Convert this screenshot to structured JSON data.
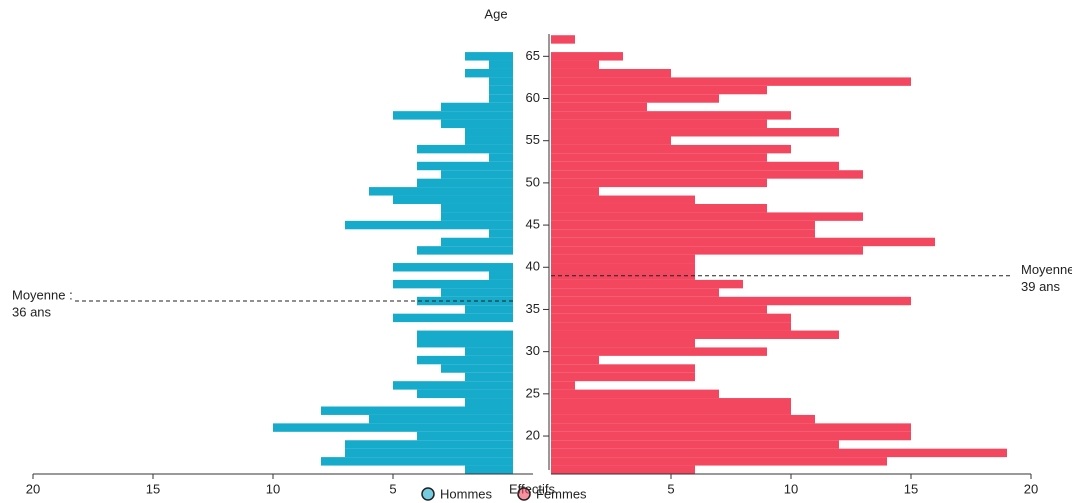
{
  "chart_data": {
    "type": "pyramid",
    "title": "Age",
    "x_label": "Effectifs",
    "y": [
      16,
      17,
      18,
      19,
      20,
      21,
      22,
      23,
      24,
      25,
      26,
      27,
      28,
      29,
      30,
      31,
      32,
      33,
      34,
      35,
      36,
      37,
      38,
      39,
      40,
      41,
      42,
      43,
      44,
      45,
      46,
      47,
      48,
      49,
      50,
      51,
      52,
      53,
      54,
      55,
      56,
      57,
      58,
      59,
      60,
      61,
      62,
      63,
      64,
      65,
      66,
      67
    ],
    "series": [
      {
        "name": "Hommes",
        "color": "#16aacb",
        "side": "left",
        "values": [
          2,
          8,
          7,
          7,
          4,
          10,
          6,
          8,
          2,
          4,
          5,
          2,
          3,
          4,
          2,
          4,
          4,
          0,
          5,
          2,
          4,
          3,
          5,
          1,
          5,
          0,
          4,
          3,
          1,
          7,
          3,
          3,
          5,
          6,
          4,
          3,
          4,
          1,
          4,
          2,
          2,
          3,
          5,
          3,
          1,
          1,
          1,
          2,
          1,
          2,
          0,
          0
        ]
      },
      {
        "name": "Femmes",
        "color": "#f3475f",
        "side": "right",
        "values": [
          6,
          14,
          19,
          12,
          15,
          15,
          11,
          10,
          10,
          7,
          1,
          6,
          6,
          2,
          9,
          6,
          12,
          10,
          10,
          9,
          15,
          7,
          8,
          6,
          6,
          6,
          13,
          16,
          11,
          11,
          13,
          9,
          6,
          2,
          9,
          13,
          12,
          9,
          10,
          5,
          12,
          9,
          10,
          4,
          7,
          9,
          15,
          5,
          2,
          3,
          0,
          1
        ]
      }
    ],
    "xlim": [
      0,
      20
    ],
    "xticks": [
      5,
      10,
      15,
      20
    ],
    "ylim": [
      15.5,
      68
    ],
    "yticks": [
      20,
      25,
      30,
      35,
      40,
      45,
      50,
      55,
      60,
      65
    ],
    "annotations": [
      {
        "text": "Moyenne :",
        "value": 36,
        "label": "36 ans",
        "side": "left"
      },
      {
        "text": "Moyenne :",
        "value": 39,
        "label": "39 ans",
        "side": "right"
      }
    ]
  }
}
